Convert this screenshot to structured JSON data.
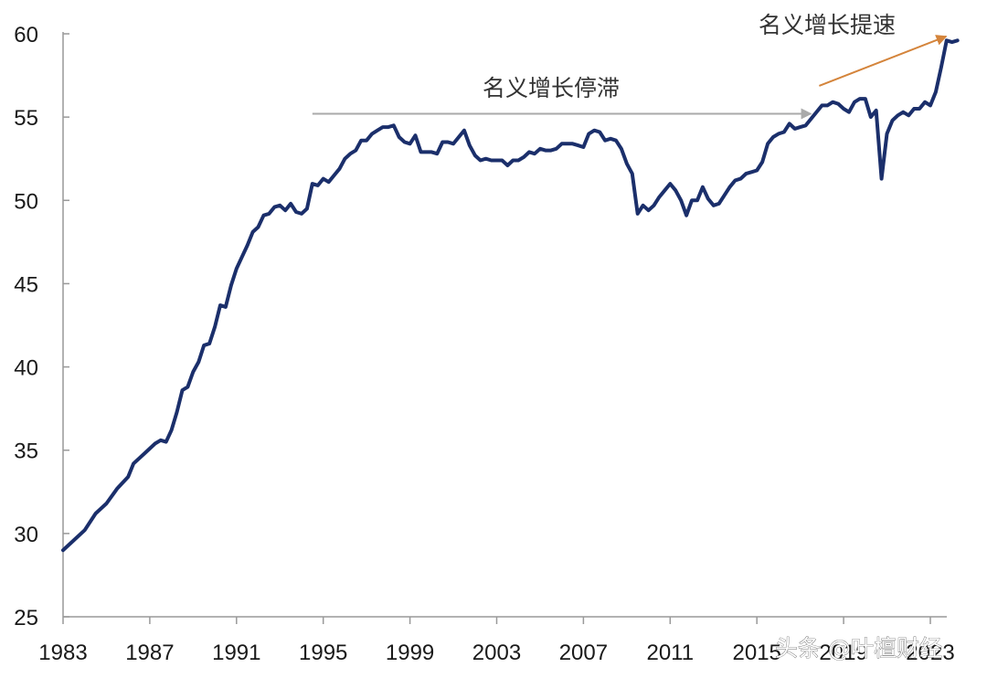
{
  "chart_data": {
    "type": "line",
    "series_color": "#1b2f6b",
    "x_ticks": [
      "1983",
      "1987",
      "1991",
      "1995",
      "1999",
      "2003",
      "2007",
      "2011",
      "2015",
      "2019",
      "2023"
    ],
    "y_ticks": [
      "25",
      "30",
      "35",
      "40",
      "45",
      "50",
      "55",
      "60"
    ],
    "xlim": [
      1983.0,
      2023.75
    ],
    "ylim": [
      25,
      60
    ],
    "grid": false,
    "points": [
      [
        1983.0,
        29.0
      ],
      [
        1983.5,
        29.6
      ],
      [
        1984.0,
        30.2
      ],
      [
        1984.5,
        31.2
      ],
      [
        1985.0,
        31.8
      ],
      [
        1985.5,
        32.7
      ],
      [
        1986.0,
        33.4
      ],
      [
        1986.25,
        34.2
      ],
      [
        1986.75,
        34.8
      ],
      [
        1987.25,
        35.4
      ],
      [
        1987.5,
        35.6
      ],
      [
        1987.75,
        35.5
      ],
      [
        1988.0,
        36.2
      ],
      [
        1988.25,
        37.3
      ],
      [
        1988.5,
        38.6
      ],
      [
        1988.75,
        38.8
      ],
      [
        1989.0,
        39.7
      ],
      [
        1989.25,
        40.3
      ],
      [
        1989.5,
        41.3
      ],
      [
        1989.75,
        41.4
      ],
      [
        1990.0,
        42.4
      ],
      [
        1990.25,
        43.7
      ],
      [
        1990.5,
        43.6
      ],
      [
        1990.75,
        44.9
      ],
      [
        1991.0,
        45.9
      ],
      [
        1991.25,
        46.6
      ],
      [
        1991.5,
        47.3
      ],
      [
        1991.75,
        48.1
      ],
      [
        1992.0,
        48.4
      ],
      [
        1992.25,
        49.1
      ],
      [
        1992.5,
        49.2
      ],
      [
        1992.75,
        49.6
      ],
      [
        1993.0,
        49.7
      ],
      [
        1993.25,
        49.4
      ],
      [
        1993.5,
        49.8
      ],
      [
        1993.75,
        49.3
      ],
      [
        1994.0,
        49.2
      ],
      [
        1994.25,
        49.5
      ],
      [
        1994.5,
        51.0
      ],
      [
        1994.75,
        50.9
      ],
      [
        1995.0,
        51.3
      ],
      [
        1995.25,
        51.1
      ],
      [
        1995.5,
        51.5
      ],
      [
        1995.75,
        51.9
      ],
      [
        1996.0,
        52.5
      ],
      [
        1996.25,
        52.8
      ],
      [
        1996.5,
        53.0
      ],
      [
        1996.75,
        53.6
      ],
      [
        1997.0,
        53.6
      ],
      [
        1997.25,
        54.0
      ],
      [
        1997.5,
        54.2
      ],
      [
        1997.75,
        54.4
      ],
      [
        1998.0,
        54.4
      ],
      [
        1998.25,
        54.5
      ],
      [
        1998.5,
        53.8
      ],
      [
        1998.75,
        53.5
      ],
      [
        1999.0,
        53.4
      ],
      [
        1999.25,
        53.9
      ],
      [
        1999.5,
        52.9
      ],
      [
        1999.75,
        52.9
      ],
      [
        2000.0,
        52.9
      ],
      [
        2000.25,
        52.8
      ],
      [
        2000.5,
        53.5
      ],
      [
        2000.75,
        53.5
      ],
      [
        2001.0,
        53.4
      ],
      [
        2001.25,
        53.8
      ],
      [
        2001.5,
        54.2
      ],
      [
        2001.75,
        53.3
      ],
      [
        2002.0,
        52.7
      ],
      [
        2002.25,
        52.4
      ],
      [
        2002.5,
        52.5
      ],
      [
        2002.75,
        52.4
      ],
      [
        2003.0,
        52.4
      ],
      [
        2003.25,
        52.4
      ],
      [
        2003.5,
        52.1
      ],
      [
        2003.75,
        52.4
      ],
      [
        2004.0,
        52.4
      ],
      [
        2004.25,
        52.6
      ],
      [
        2004.5,
        52.9
      ],
      [
        2004.75,
        52.8
      ],
      [
        2005.0,
        53.1
      ],
      [
        2005.25,
        53.0
      ],
      [
        2005.5,
        53.0
      ],
      [
        2005.75,
        53.1
      ],
      [
        2006.0,
        53.4
      ],
      [
        2006.25,
        53.4
      ],
      [
        2006.5,
        53.4
      ],
      [
        2006.75,
        53.3
      ],
      [
        2007.0,
        53.2
      ],
      [
        2007.25,
        54.0
      ],
      [
        2007.5,
        54.2
      ],
      [
        2007.75,
        54.1
      ],
      [
        2008.0,
        53.6
      ],
      [
        2008.25,
        53.7
      ],
      [
        2008.5,
        53.6
      ],
      [
        2008.75,
        53.1
      ],
      [
        2009.0,
        52.2
      ],
      [
        2009.25,
        51.6
      ],
      [
        2009.5,
        49.2
      ],
      [
        2009.75,
        49.7
      ],
      [
        2010.0,
        49.4
      ],
      [
        2010.25,
        49.7
      ],
      [
        2010.5,
        50.2
      ],
      [
        2010.75,
        50.6
      ],
      [
        2011.0,
        51.0
      ],
      [
        2011.25,
        50.6
      ],
      [
        2011.5,
        50.0
      ],
      [
        2011.75,
        49.1
      ],
      [
        2012.0,
        50.0
      ],
      [
        2012.25,
        50.0
      ],
      [
        2012.5,
        50.8
      ],
      [
        2012.75,
        50.1
      ],
      [
        2013.0,
        49.7
      ],
      [
        2013.25,
        49.8
      ],
      [
        2013.5,
        50.3
      ],
      [
        2013.75,
        50.8
      ],
      [
        2014.0,
        51.2
      ],
      [
        2014.25,
        51.3
      ],
      [
        2014.5,
        51.6
      ],
      [
        2014.75,
        51.7
      ],
      [
        2015.0,
        51.8
      ],
      [
        2015.25,
        52.3
      ],
      [
        2015.5,
        53.4
      ],
      [
        2015.75,
        53.8
      ],
      [
        2016.0,
        54.0
      ],
      [
        2016.25,
        54.1
      ],
      [
        2016.5,
        54.6
      ],
      [
        2016.75,
        54.3
      ],
      [
        2017.0,
        54.4
      ],
      [
        2017.25,
        54.5
      ],
      [
        2017.5,
        54.9
      ],
      [
        2017.75,
        55.3
      ],
      [
        2018.0,
        55.7
      ],
      [
        2018.25,
        55.7
      ],
      [
        2018.5,
        55.9
      ],
      [
        2018.75,
        55.8
      ],
      [
        2019.0,
        55.5
      ],
      [
        2019.25,
        55.3
      ],
      [
        2019.5,
        55.9
      ],
      [
        2019.75,
        56.1
      ],
      [
        2020.0,
        56.1
      ],
      [
        2020.25,
        55.0
      ],
      [
        2020.5,
        55.4
      ],
      [
        2020.75,
        51.3
      ],
      [
        2021.0,
        54.0
      ],
      [
        2021.25,
        54.8
      ],
      [
        2021.5,
        55.1
      ],
      [
        2021.75,
        55.3
      ],
      [
        2022.0,
        55.1
      ],
      [
        2022.25,
        55.5
      ],
      [
        2022.5,
        55.5
      ],
      [
        2022.75,
        55.9
      ],
      [
        2023.0,
        55.7
      ],
      [
        2023.25,
        56.5
      ],
      [
        2023.5,
        58.0
      ],
      [
        2023.75,
        59.6
      ],
      [
        2024.0,
        59.5
      ],
      [
        2024.25,
        59.6
      ]
    ],
    "annotations": [
      {
        "text": "名义增长停滞",
        "color": "#aaaaaa",
        "x_start": 1994.5,
        "x_end": 2018.0,
        "y": 55.2
      },
      {
        "text": "名义增长提速",
        "color": "#d4843b",
        "x_start": 2018.0,
        "x_end": 2023.9,
        "y_start": 56.0,
        "y_end": 59.9
      }
    ],
    "watermark": "头条 @叶檀财经"
  }
}
